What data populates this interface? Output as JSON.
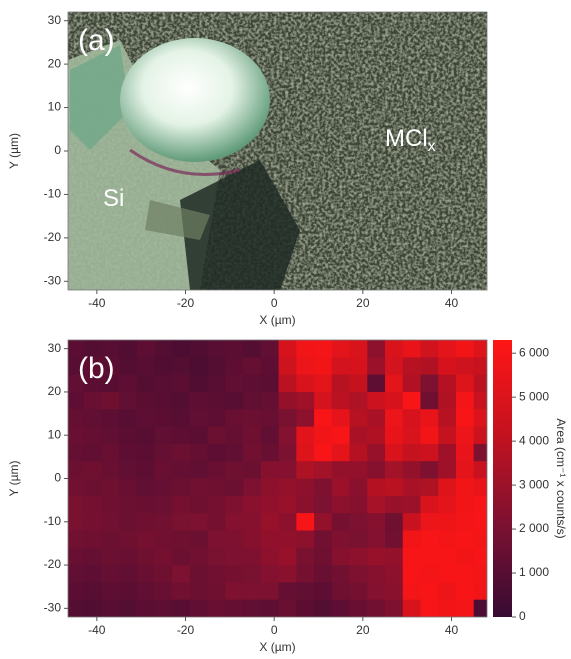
{
  "chart_data": [
    {
      "type": "image",
      "label": "(a)",
      "xlabel": "X (µm)",
      "ylabel": "Y (µm)",
      "xlim": [
        -46.5,
        48
      ],
      "ylim": [
        -32,
        32
      ],
      "xticks": [
        -40,
        -20,
        0,
        20,
        40
      ],
      "yticks": [
        -30,
        -20,
        -10,
        0,
        10,
        20,
        30
      ],
      "annotations": [
        {
          "text": "Si"
        },
        {
          "text": "MCl",
          "subscript": "x"
        }
      ]
    },
    {
      "type": "heatmap",
      "label": "(b)",
      "xlabel": "X (µm)",
      "ylabel": "Y (µm)",
      "xlim": [
        -46.5,
        48
      ],
      "ylim": [
        -32,
        32
      ],
      "xticks": [
        -40,
        -20,
        0,
        20,
        40
      ],
      "yticks": [
        -30,
        -20,
        -10,
        0,
        10,
        20,
        30
      ],
      "x": [
        -45,
        -41,
        -37,
        -33,
        -29,
        -25,
        -21,
        -17,
        -13,
        -9,
        -5,
        -1,
        3,
        7,
        11,
        15,
        19,
        23,
        27,
        31,
        35,
        39,
        43,
        47
      ],
      "y": [
        30,
        26,
        22,
        18,
        14,
        10,
        6,
        2,
        -2,
        -6,
        -10,
        -14,
        -18,
        -22,
        -26,
        -30
      ],
      "z": [
        [
          1100,
          900,
          1000,
          800,
          1200,
          900,
          700,
          800,
          1000,
          1100,
          900,
          1300,
          4800,
          5800,
          5900,
          5300,
          4900,
          2600,
          4900,
          5500,
          4600,
          5300,
          5800,
          5100
        ],
        [
          1000,
          1200,
          1100,
          900,
          1000,
          800,
          900,
          700,
          900,
          1200,
          1400,
          1200,
          4500,
          5600,
          5800,
          4700,
          4800,
          3000,
          4700,
          3800,
          3600,
          4800,
          4500,
          4300
        ],
        [
          1300,
          1100,
          1000,
          1200,
          900,
          1000,
          1100,
          800,
          1000,
          1300,
          1200,
          1100,
          3900,
          4900,
          5300,
          3800,
          4200,
          1200,
          5300,
          3600,
          2100,
          3700,
          5100,
          3900
        ],
        [
          1200,
          1500,
          1700,
          1300,
          1100,
          1000,
          900,
          1200,
          1100,
          1000,
          1300,
          1400,
          2800,
          3100,
          4700,
          3900,
          3500,
          4400,
          4800,
          6000,
          1700,
          3600,
          5900,
          4300
        ],
        [
          1400,
          1300,
          1200,
          1000,
          1200,
          1100,
          1000,
          1300,
          1200,
          1500,
          1600,
          1500,
          2000,
          2600,
          6000,
          5400,
          3800,
          3400,
          5600,
          4800,
          5500,
          3800,
          6000,
          5000
        ],
        [
          1500,
          1400,
          1300,
          1100,
          1000,
          1300,
          1200,
          1100,
          1600,
          1400,
          1700,
          1300,
          2300,
          5200,
          5800,
          6000,
          3400,
          3600,
          5500,
          4900,
          5800,
          4200,
          5600,
          4400
        ],
        [
          1400,
          1300,
          1500,
          1200,
          1100,
          1400,
          1600,
          1400,
          1200,
          1300,
          1800,
          1500,
          2100,
          5100,
          6000,
          5300,
          3700,
          2900,
          4900,
          4200,
          4400,
          3100,
          5500,
          2200
        ],
        [
          1600,
          1700,
          1500,
          1300,
          1200,
          1500,
          1400,
          1300,
          1500,
          1700,
          1600,
          2400,
          2300,
          3500,
          3200,
          2800,
          2800,
          2400,
          3200,
          2800,
          2200,
          3100,
          5300,
          4300
        ],
        [
          1800,
          1600,
          1700,
          1500,
          1300,
          1400,
          1600,
          1800,
          1700,
          1600,
          2100,
          2600,
          2800,
          2600,
          2200,
          3000,
          2500,
          3700,
          3900,
          3400,
          3500,
          5100,
          5800,
          5500
        ],
        [
          2000,
          1900,
          1700,
          1600,
          1500,
          1600,
          1900,
          1700,
          1900,
          2200,
          2500,
          2700,
          2900,
          2500,
          2100,
          2600,
          2400,
          3300,
          2900,
          3000,
          4900,
          5300,
          5800,
          6000
        ],
        [
          2000,
          1900,
          1800,
          1600,
          1700,
          1800,
          2000,
          2100,
          1900,
          2300,
          2400,
          2900,
          2600,
          6000,
          2800,
          1900,
          2100,
          2400,
          1700,
          4300,
          5600,
          5700,
          5900,
          6000
        ],
        [
          1800,
          1700,
          1600,
          1700,
          1900,
          1800,
          1700,
          1600,
          2100,
          2200,
          2400,
          2700,
          2700,
          2600,
          1800,
          2200,
          2000,
          2300,
          1800,
          5800,
          6000,
          5900,
          6000,
          5900
        ],
        [
          1500,
          1400,
          1600,
          1500,
          1700,
          1900,
          1600,
          1800,
          2000,
          2100,
          2200,
          2600,
          2900,
          2000,
          1700,
          2400,
          2600,
          2900,
          2800,
          6000,
          6000,
          6000,
          5800,
          6000
        ],
        [
          1300,
          1200,
          1400,
          1300,
          1500,
          1700,
          2100,
          1600,
          1800,
          1900,
          2000,
          2300,
          2500,
          1900,
          1500,
          1800,
          2200,
          2400,
          2600,
          6000,
          5900,
          6000,
          6000,
          5900
        ],
        [
          1100,
          1000,
          1200,
          1100,
          1300,
          1500,
          1800,
          1600,
          1700,
          2200,
          2100,
          2100,
          1400,
          1300,
          1200,
          1700,
          1900,
          2300,
          2500,
          5900,
          6000,
          5700,
          6000,
          5800
        ],
        [
          900,
          800,
          1000,
          900,
          1100,
          1200,
          1000,
          1300,
          1500,
          1400,
          1300,
          1200,
          1500,
          1100,
          900,
          1200,
          1500,
          1800,
          2200,
          4900,
          6000,
          5800,
          5900,
          700
        ]
      ],
      "colormap": [
        "#360b33",
        "#7c1131",
        "#c5121f",
        "#ff1616"
      ],
      "zlim": [
        0,
        6300
      ],
      "colorbar_label": "Area (cm⁻¹ x counts/s)",
      "colorbar_ticks": [
        0,
        {
          "value": 1000,
          "label": "1 000"
        },
        {
          "value": 2000,
          "label": "2 000"
        },
        {
          "value": 3000,
          "label": "3 000"
        },
        {
          "value": 4000,
          "label": "4 000"
        },
        {
          "value": 5000,
          "label": "5 000"
        },
        {
          "value": 6000,
          "label": "6 000"
        }
      ]
    }
  ]
}
